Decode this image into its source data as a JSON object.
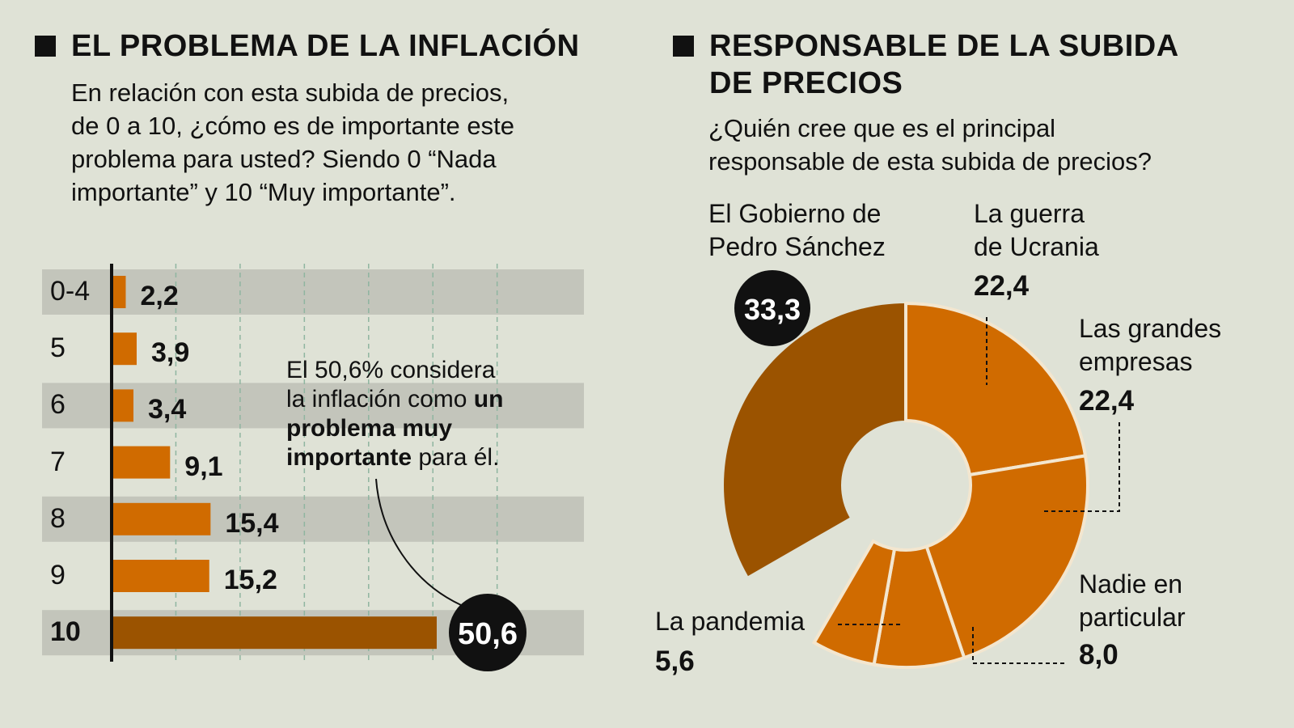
{
  "left": {
    "title": "EL PROBLEMA DE LA INFLACIÓN",
    "subtitle_lines": [
      "En relación con esta subida de precios,",
      "de 0 a 10, ¿cómo es de importante este",
      "problema para usted? Siendo 0 “Nada",
      "importante” y 10 “Muy importante”."
    ],
    "annotation": {
      "line1": "El 50,6% considera",
      "line2_a": "la inflación como ",
      "line2_b": "un",
      "line3": "problema muy",
      "line4_a": "importante",
      "line4_b": " para él."
    }
  },
  "right": {
    "title_line1": "RESPONSABLE DE LA SUBIDA",
    "title_line2": "DE PRECIOS",
    "subtitle_lines": [
      "¿Quién cree que es el principal",
      "responsable de esta subida de precios?"
    ]
  },
  "chart_data": [
    {
      "type": "bar",
      "orientation": "horizontal",
      "categories": [
        "0-4",
        "5",
        "6",
        "7",
        "8",
        "9",
        "10"
      ],
      "values": [
        2.2,
        3.9,
        3.4,
        9.1,
        15.4,
        15.2,
        50.6
      ],
      "value_labels": [
        "2,2",
        "3,9",
        "3,4",
        "9,1",
        "15,4",
        "15,2",
        "50,6"
      ],
      "highlight": "10",
      "xlim": [
        0,
        70
      ],
      "grid": true,
      "colors": {
        "bar": "#d06b00",
        "highlight": "#9b5300",
        "band": "#c3c5bb"
      }
    },
    {
      "type": "pie",
      "donut": true,
      "slices": [
        {
          "label": "El Gobierno de Pedro Sánchez",
          "label_lines": [
            "El Gobierno de",
            "Pedro Sánchez"
          ],
          "value": 33.3,
          "value_label": "33,3",
          "color": "#9b5300"
        },
        {
          "label": "La guerra de Ucrania",
          "label_lines": [
            "La guerra",
            "de Ucrania"
          ],
          "value": 22.4,
          "value_label": "22,4",
          "color": "#d06b00"
        },
        {
          "label": "Las grandes empresas",
          "label_lines": [
            "Las grandes",
            "empresas"
          ],
          "value": 22.4,
          "value_label": "22,4",
          "color": "#d06b00"
        },
        {
          "label": "Nadie en particular",
          "label_lines": [
            "Nadie en",
            "particular"
          ],
          "value": 8.0,
          "value_label": "8,0",
          "color": "#d06b00"
        },
        {
          "label": "La pandemia",
          "label_lines": [
            "La pandemia"
          ],
          "value": 5.6,
          "value_label": "5,6",
          "color": "#d06b00"
        }
      ]
    }
  ]
}
